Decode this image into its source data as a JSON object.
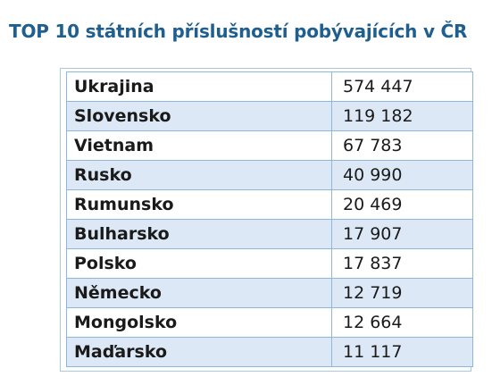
{
  "title": "TOP 10 státních příslušností pobývajících v ČR",
  "table": {
    "rows": [
      {
        "country": "Ukrajina",
        "count": "574 447"
      },
      {
        "country": "Slovensko",
        "count": "119 182"
      },
      {
        "country": "Vietnam",
        "count": "67 783"
      },
      {
        "country": "Rusko",
        "count": "40 990"
      },
      {
        "country": "Rumunsko",
        "count": "20 469"
      },
      {
        "country": "Bulharsko",
        "count": "17 907"
      },
      {
        "country": "Polsko",
        "count": "17 837"
      },
      {
        "country": "Německo",
        "count": "12 719"
      },
      {
        "country": "Mongolsko",
        "count": "12 664"
      },
      {
        "country": "Maďarsko",
        "count": "11 117"
      }
    ]
  },
  "colors": {
    "title": "#1f5f8f",
    "row_alt": "#dce8f5",
    "border": "#8fb6df"
  }
}
